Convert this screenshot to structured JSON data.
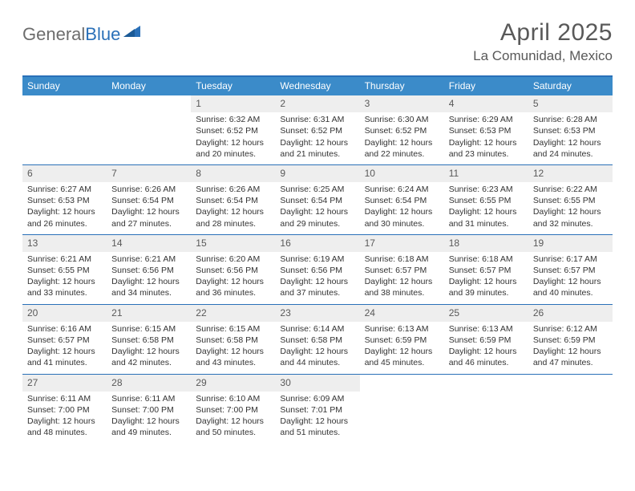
{
  "colors": {
    "header_bar": "#3b8bc9",
    "rule": "#2a70b8",
    "daynum_bg": "#eeeeee",
    "text": "#333333",
    "muted": "#595959",
    "logo_gray": "#6d6d6d",
    "logo_blue": "#2a70b8",
    "white": "#ffffff"
  },
  "logo": {
    "part1": "General",
    "part2": "Blue"
  },
  "title": "April 2025",
  "location": "La Comunidad, Mexico",
  "dow": [
    "Sunday",
    "Monday",
    "Tuesday",
    "Wednesday",
    "Thursday",
    "Friday",
    "Saturday"
  ],
  "weeks": [
    [
      null,
      null,
      {
        "n": "1",
        "sr": "Sunrise: 6:32 AM",
        "ss": "Sunset: 6:52 PM",
        "d1": "Daylight: 12 hours",
        "d2": "and 20 minutes."
      },
      {
        "n": "2",
        "sr": "Sunrise: 6:31 AM",
        "ss": "Sunset: 6:52 PM",
        "d1": "Daylight: 12 hours",
        "d2": "and 21 minutes."
      },
      {
        "n": "3",
        "sr": "Sunrise: 6:30 AM",
        "ss": "Sunset: 6:52 PM",
        "d1": "Daylight: 12 hours",
        "d2": "and 22 minutes."
      },
      {
        "n": "4",
        "sr": "Sunrise: 6:29 AM",
        "ss": "Sunset: 6:53 PM",
        "d1": "Daylight: 12 hours",
        "d2": "and 23 minutes."
      },
      {
        "n": "5",
        "sr": "Sunrise: 6:28 AM",
        "ss": "Sunset: 6:53 PM",
        "d1": "Daylight: 12 hours",
        "d2": "and 24 minutes."
      }
    ],
    [
      {
        "n": "6",
        "sr": "Sunrise: 6:27 AM",
        "ss": "Sunset: 6:53 PM",
        "d1": "Daylight: 12 hours",
        "d2": "and 26 minutes."
      },
      {
        "n": "7",
        "sr": "Sunrise: 6:26 AM",
        "ss": "Sunset: 6:54 PM",
        "d1": "Daylight: 12 hours",
        "d2": "and 27 minutes."
      },
      {
        "n": "8",
        "sr": "Sunrise: 6:26 AM",
        "ss": "Sunset: 6:54 PM",
        "d1": "Daylight: 12 hours",
        "d2": "and 28 minutes."
      },
      {
        "n": "9",
        "sr": "Sunrise: 6:25 AM",
        "ss": "Sunset: 6:54 PM",
        "d1": "Daylight: 12 hours",
        "d2": "and 29 minutes."
      },
      {
        "n": "10",
        "sr": "Sunrise: 6:24 AM",
        "ss": "Sunset: 6:54 PM",
        "d1": "Daylight: 12 hours",
        "d2": "and 30 minutes."
      },
      {
        "n": "11",
        "sr": "Sunrise: 6:23 AM",
        "ss": "Sunset: 6:55 PM",
        "d1": "Daylight: 12 hours",
        "d2": "and 31 minutes."
      },
      {
        "n": "12",
        "sr": "Sunrise: 6:22 AM",
        "ss": "Sunset: 6:55 PM",
        "d1": "Daylight: 12 hours",
        "d2": "and 32 minutes."
      }
    ],
    [
      {
        "n": "13",
        "sr": "Sunrise: 6:21 AM",
        "ss": "Sunset: 6:55 PM",
        "d1": "Daylight: 12 hours",
        "d2": "and 33 minutes."
      },
      {
        "n": "14",
        "sr": "Sunrise: 6:21 AM",
        "ss": "Sunset: 6:56 PM",
        "d1": "Daylight: 12 hours",
        "d2": "and 34 minutes."
      },
      {
        "n": "15",
        "sr": "Sunrise: 6:20 AM",
        "ss": "Sunset: 6:56 PM",
        "d1": "Daylight: 12 hours",
        "d2": "and 36 minutes."
      },
      {
        "n": "16",
        "sr": "Sunrise: 6:19 AM",
        "ss": "Sunset: 6:56 PM",
        "d1": "Daylight: 12 hours",
        "d2": "and 37 minutes."
      },
      {
        "n": "17",
        "sr": "Sunrise: 6:18 AM",
        "ss": "Sunset: 6:57 PM",
        "d1": "Daylight: 12 hours",
        "d2": "and 38 minutes."
      },
      {
        "n": "18",
        "sr": "Sunrise: 6:18 AM",
        "ss": "Sunset: 6:57 PM",
        "d1": "Daylight: 12 hours",
        "d2": "and 39 minutes."
      },
      {
        "n": "19",
        "sr": "Sunrise: 6:17 AM",
        "ss": "Sunset: 6:57 PM",
        "d1": "Daylight: 12 hours",
        "d2": "and 40 minutes."
      }
    ],
    [
      {
        "n": "20",
        "sr": "Sunrise: 6:16 AM",
        "ss": "Sunset: 6:57 PM",
        "d1": "Daylight: 12 hours",
        "d2": "and 41 minutes."
      },
      {
        "n": "21",
        "sr": "Sunrise: 6:15 AM",
        "ss": "Sunset: 6:58 PM",
        "d1": "Daylight: 12 hours",
        "d2": "and 42 minutes."
      },
      {
        "n": "22",
        "sr": "Sunrise: 6:15 AM",
        "ss": "Sunset: 6:58 PM",
        "d1": "Daylight: 12 hours",
        "d2": "and 43 minutes."
      },
      {
        "n": "23",
        "sr": "Sunrise: 6:14 AM",
        "ss": "Sunset: 6:58 PM",
        "d1": "Daylight: 12 hours",
        "d2": "and 44 minutes."
      },
      {
        "n": "24",
        "sr": "Sunrise: 6:13 AM",
        "ss": "Sunset: 6:59 PM",
        "d1": "Daylight: 12 hours",
        "d2": "and 45 minutes."
      },
      {
        "n": "25",
        "sr": "Sunrise: 6:13 AM",
        "ss": "Sunset: 6:59 PM",
        "d1": "Daylight: 12 hours",
        "d2": "and 46 minutes."
      },
      {
        "n": "26",
        "sr": "Sunrise: 6:12 AM",
        "ss": "Sunset: 6:59 PM",
        "d1": "Daylight: 12 hours",
        "d2": "and 47 minutes."
      }
    ],
    [
      {
        "n": "27",
        "sr": "Sunrise: 6:11 AM",
        "ss": "Sunset: 7:00 PM",
        "d1": "Daylight: 12 hours",
        "d2": "and 48 minutes."
      },
      {
        "n": "28",
        "sr": "Sunrise: 6:11 AM",
        "ss": "Sunset: 7:00 PM",
        "d1": "Daylight: 12 hours",
        "d2": "and 49 minutes."
      },
      {
        "n": "29",
        "sr": "Sunrise: 6:10 AM",
        "ss": "Sunset: 7:00 PM",
        "d1": "Daylight: 12 hours",
        "d2": "and 50 minutes."
      },
      {
        "n": "30",
        "sr": "Sunrise: 6:09 AM",
        "ss": "Sunset: 7:01 PM",
        "d1": "Daylight: 12 hours",
        "d2": "and 51 minutes."
      },
      null,
      null,
      null
    ]
  ]
}
